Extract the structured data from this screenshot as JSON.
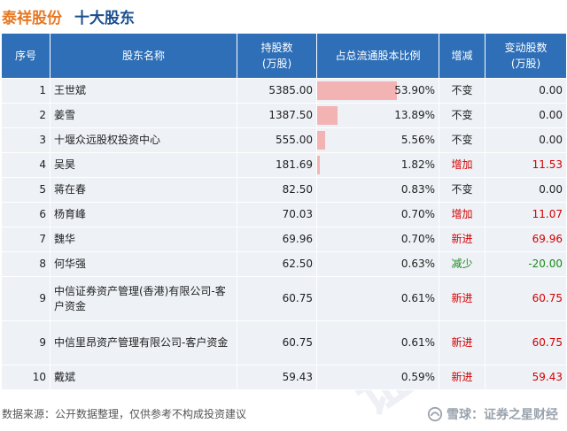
{
  "title": {
    "company": "泰祥股份",
    "section": "十大股东"
  },
  "columns": {
    "rank": "序号",
    "name": "股东名称",
    "shares": "持股数\n(万股)",
    "ratio": "占总流通股本比例",
    "change": "增减",
    "delta": "变动股数\n(万股)"
  },
  "rows": [
    {
      "rank": "1",
      "name": "王世斌",
      "shares": "5385.00",
      "ratio": "53.90%",
      "ratio_value": 53.9,
      "change": "不变",
      "change_type": "flat",
      "delta": "0.00"
    },
    {
      "rank": "2",
      "name": "姜雪",
      "shares": "1387.50",
      "ratio": "13.89%",
      "ratio_value": 13.89,
      "change": "不变",
      "change_type": "flat",
      "delta": "0.00"
    },
    {
      "rank": "3",
      "name": "十堰众远股权投资中心",
      "shares": "555.00",
      "ratio": "5.56%",
      "ratio_value": 5.56,
      "change": "不变",
      "change_type": "flat",
      "delta": "0.00"
    },
    {
      "rank": "4",
      "name": "吴昊",
      "shares": "181.69",
      "ratio": "1.82%",
      "ratio_value": 1.82,
      "change": "增加",
      "change_type": "up",
      "delta": "11.53"
    },
    {
      "rank": "5",
      "name": "蒋在春",
      "shares": "82.50",
      "ratio": "0.83%",
      "ratio_value": 0.83,
      "change": "不变",
      "change_type": "flat",
      "delta": "0.00"
    },
    {
      "rank": "6",
      "name": "杨育峰",
      "shares": "70.03",
      "ratio": "0.70%",
      "ratio_value": 0.7,
      "change": "增加",
      "change_type": "up",
      "delta": "11.07"
    },
    {
      "rank": "7",
      "name": "魏华",
      "shares": "69.96",
      "ratio": "0.70%",
      "ratio_value": 0.7,
      "change": "新进",
      "change_type": "up",
      "delta": "69.96"
    },
    {
      "rank": "8",
      "name": "何华强",
      "shares": "62.50",
      "ratio": "0.63%",
      "ratio_value": 0.63,
      "change": "减少",
      "change_type": "down",
      "delta": "-20.00"
    },
    {
      "rank": "9",
      "name": "中信证券资产管理(香港)有限公司-客户资金",
      "shares": "60.75",
      "ratio": "0.61%",
      "ratio_value": 0.61,
      "change": "新进",
      "change_type": "up",
      "delta": "60.75"
    },
    {
      "rank": "9",
      "name": "中信里昂资产管理有限公司-客户资金",
      "shares": "60.75",
      "ratio": "0.61%",
      "ratio_value": 0.61,
      "change": "新进",
      "change_type": "up",
      "delta": "60.75"
    },
    {
      "rank": "10",
      "name": "戴斌",
      "shares": "59.43",
      "ratio": "0.59%",
      "ratio_value": 0.59,
      "change": "新进",
      "change_type": "up",
      "delta": "59.43"
    }
  ],
  "footer": {
    "source": "数据来源：公开数据整理，仅供参考不构成投资建议",
    "brand": "雪球：证券之星财经"
  },
  "watermark_text": "证券之星",
  "colors": {
    "header_bg": "#2e6fb7",
    "row_bg": "#eef1f6",
    "bar": "#f4b3b3",
    "up": "#d40000",
    "down": "#1c8a1c",
    "title_company": "#e87722",
    "title_section": "#1a4e8f"
  }
}
